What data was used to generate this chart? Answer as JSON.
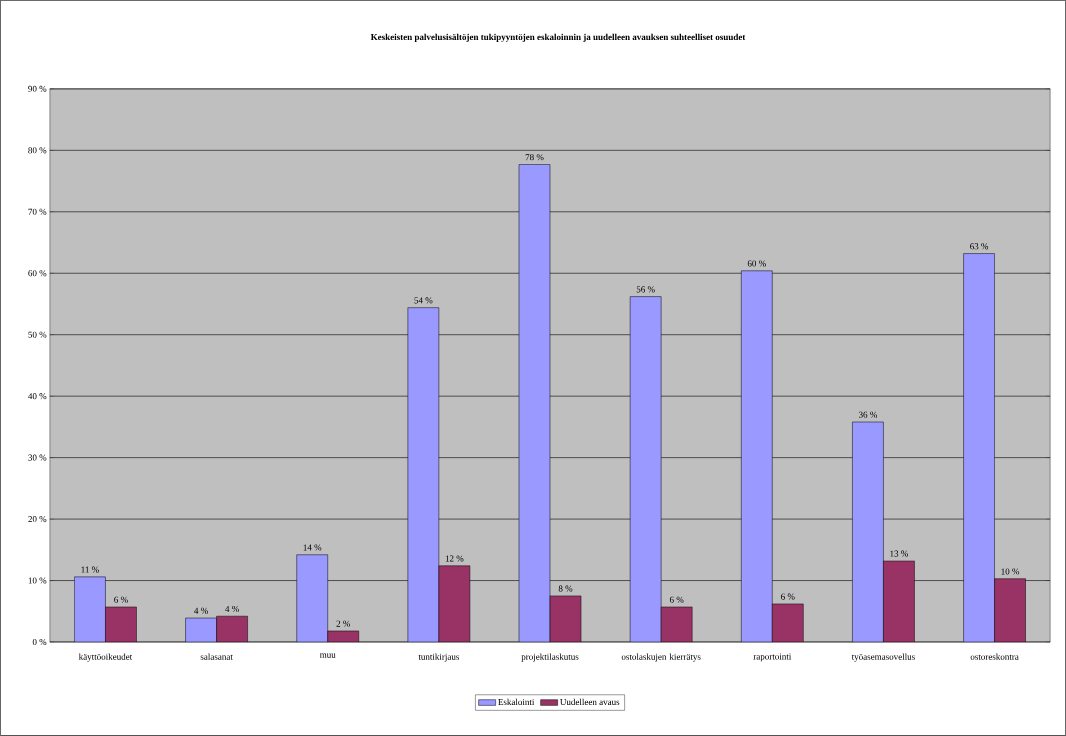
{
  "chart_data": {
    "type": "bar",
    "title": "Keskeisten palvelusisältöjen tukipyyntöjen eskaloinnin ja uudelleen avauksen suhteelliset osuudet",
    "categories": [
      "käyttöoikeudet",
      "salasanat",
      "muu",
      "tuntikirjaus",
      "projektilaskutus",
      "ostolaskujen kierrätys",
      "raportointi",
      "työasemasovellus",
      "ostoreskontra"
    ],
    "series": [
      {
        "name": "Eskalointi",
        "color": "#9999ff",
        "values": [
          10.6,
          3.9,
          14.2,
          54.4,
          77.7,
          56.2,
          60.4,
          35.8,
          63.2
        ],
        "value_labels": [
          "11 %",
          "4 %",
          "14 %",
          "54 %",
          "78 %",
          "56 %",
          "60 %",
          "36 %",
          "63 %"
        ]
      },
      {
        "name": "Uudelleen avaus",
        "color": "#993366",
        "values": [
          5.7,
          4.2,
          1.8,
          12.4,
          7.5,
          5.7,
          6.2,
          13.2,
          10.3
        ],
        "value_labels": [
          "6 %",
          "4 %",
          "2 %",
          "12 %",
          "8 %",
          "6 %",
          "6 %",
          "13 %",
          "10 %"
        ]
      }
    ],
    "ylim": [
      0,
      90
    ],
    "yticks": [
      {
        "value": 0,
        "label": "0 %"
      },
      {
        "value": 10,
        "label": "10 %"
      },
      {
        "value": 20,
        "label": "20 %"
      },
      {
        "value": 30,
        "label": "30 %"
      },
      {
        "value": 40,
        "label": "40 %"
      },
      {
        "value": 50,
        "label": "50 %"
      },
      {
        "value": 60,
        "label": "60 %"
      },
      {
        "value": 70,
        "label": "70 %"
      },
      {
        "value": 80,
        "label": "80 %"
      },
      {
        "value": 90,
        "label": "90 %"
      }
    ],
    "grid": "y",
    "legend": "bottom"
  }
}
